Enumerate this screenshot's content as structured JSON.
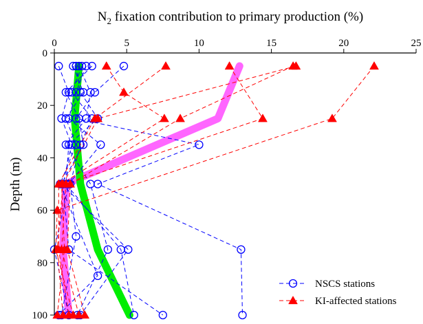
{
  "chart_data": {
    "type": "line",
    "title": "",
    "xlabel": "N₂ fixation contribution to primary production (%)",
    "xlabel_parts": {
      "base": "N",
      "subscript": "2",
      "rest": " fixation contribution to primary production (%)"
    },
    "ylabel": "Depth (m)",
    "xlim": [
      0,
      25
    ],
    "ylim": [
      100,
      0
    ],
    "x_axis_position": "top",
    "y_inverted": true,
    "grid": false,
    "xticks": [
      "0",
      "5",
      "10",
      "15",
      "20",
      "25"
    ],
    "yticks": [
      "0",
      "20",
      "40",
      "60",
      "80",
      "100"
    ],
    "legend": {
      "placement": "bottom-right",
      "entries": [
        {
          "label": "NSCS stations",
          "color": "#0000ff",
          "marker": "open-circle",
          "line": "dashed"
        },
        {
          "label": "KI-affected stations",
          "color": "#ff0000",
          "marker": "filled-triangle",
          "line": "dashed"
        }
      ]
    },
    "series": [
      {
        "group": "nscs",
        "color": "#0000ff",
        "points": [
          [
            0.3,
            5
          ],
          [
            1.0,
            15
          ],
          [
            0.5,
            25
          ],
          [
            1.2,
            35
          ],
          [
            0.6,
            50
          ],
          [
            1.0,
            75
          ],
          [
            7.5,
            100
          ]
        ]
      },
      {
        "group": "nscs",
        "color": "#0000ff",
        "points": [
          [
            4.8,
            5
          ],
          [
            2.8,
            15
          ],
          [
            1.5,
            25
          ],
          [
            10.0,
            35
          ],
          [
            3.0,
            50
          ],
          [
            12.9,
            75
          ],
          [
            13.0,
            100
          ]
        ]
      },
      {
        "group": "nscs",
        "color": "#0000ff",
        "points": [
          [
            1.5,
            5
          ],
          [
            1.8,
            15
          ],
          [
            3.0,
            25
          ],
          [
            1.0,
            35
          ],
          [
            0.8,
            50
          ],
          [
            4.6,
            75
          ],
          [
            5.5,
            100
          ]
        ]
      },
      {
        "group": "nscs",
        "color": "#0000ff",
        "points": [
          [
            2.2,
            5
          ],
          [
            1.5,
            15
          ],
          [
            1.0,
            25
          ],
          [
            3.2,
            35
          ],
          [
            1.0,
            50
          ],
          [
            0.0,
            75
          ],
          [
            1.0,
            100
          ]
        ]
      },
      {
        "group": "nscs",
        "color": "#0000ff",
        "points": [
          [
            1.7,
            5
          ],
          [
            2.5,
            15
          ],
          [
            2.2,
            25
          ],
          [
            0.8,
            35
          ],
          [
            2.5,
            50
          ],
          [
            3.7,
            75
          ],
          [
            1.6,
            100
          ]
        ]
      },
      {
        "group": "nscs",
        "color": "#0000ff",
        "points": [
          [
            2.6,
            5
          ],
          [
            0.8,
            15
          ],
          [
            1.7,
            25
          ],
          [
            2.0,
            35
          ],
          [
            0.5,
            50
          ],
          [
            5.1,
            75
          ],
          [
            1.8,
            100
          ]
        ]
      },
      {
        "group": "nscs",
        "color": "#0000ff",
        "points": [
          [
            1.3,
            5
          ],
          [
            2.0,
            15
          ],
          [
            0.8,
            25
          ],
          [
            1.5,
            35
          ],
          [
            0.4,
            50
          ],
          [
            3.0,
            85
          ],
          [
            0.3,
            100
          ]
        ]
      },
      {
        "group": "nscs",
        "color": "#0000ff",
        "points": [
          [
            1.9,
            5
          ],
          [
            1.2,
            15
          ],
          [
            2.6,
            25
          ],
          [
            1.8,
            35
          ],
          [
            1.1,
            50
          ],
          [
            1.5,
            70
          ],
          [
            0.5,
            100
          ]
        ]
      },
      {
        "group": "ki",
        "color": "#ff0000",
        "points": [
          [
            3.6,
            5
          ],
          [
            4.8,
            15
          ],
          [
            7.6,
            25
          ],
          [
            0.5,
            50
          ],
          [
            0.7,
            75
          ],
          [
            0.2,
            100
          ]
        ]
      },
      {
        "group": "ki",
        "color": "#ff0000",
        "points": [
          [
            7.7,
            5
          ],
          [
            2.8,
            25
          ],
          [
            0.3,
            50
          ],
          [
            0.3,
            75
          ],
          [
            1.0,
            100
          ]
        ]
      },
      {
        "group": "ki",
        "color": "#ff0000",
        "points": [
          [
            12.1,
            5
          ],
          [
            14.4,
            25
          ],
          [
            0.8,
            50
          ],
          [
            0.5,
            75
          ],
          [
            1.7,
            100
          ]
        ]
      },
      {
        "group": "ki",
        "color": "#ff0000",
        "points": [
          [
            16.5,
            5
          ],
          [
            8.7,
            25
          ],
          [
            1.1,
            50
          ],
          [
            0.9,
            75
          ],
          [
            2.1,
            100
          ]
        ]
      },
      {
        "group": "ki",
        "color": "#ff0000",
        "points": [
          [
            16.7,
            5
          ],
          [
            3.0,
            25
          ],
          [
            0.6,
            50
          ],
          [
            0.2,
            75
          ],
          [
            0.6,
            100
          ]
        ]
      },
      {
        "group": "ki",
        "color": "#ff0000",
        "points": [
          [
            22.1,
            5
          ],
          [
            19.2,
            25
          ],
          [
            0.2,
            60
          ],
          [
            0.1,
            75
          ],
          [
            1.3,
            100
          ]
        ]
      },
      {
        "group": "trend_ki",
        "color": "#ff66ff",
        "points": [
          [
            12.8,
            5
          ],
          [
            11.3,
            25
          ],
          [
            0.8,
            50
          ],
          [
            0.6,
            75
          ],
          [
            1.0,
            100
          ]
        ]
      },
      {
        "group": "trend_nscs",
        "color": "#00ee00",
        "points": [
          [
            1.7,
            5
          ],
          [
            1.4,
            25
          ],
          [
            1.8,
            50
          ],
          [
            3.0,
            75
          ],
          [
            5.2,
            100
          ]
        ]
      }
    ]
  }
}
